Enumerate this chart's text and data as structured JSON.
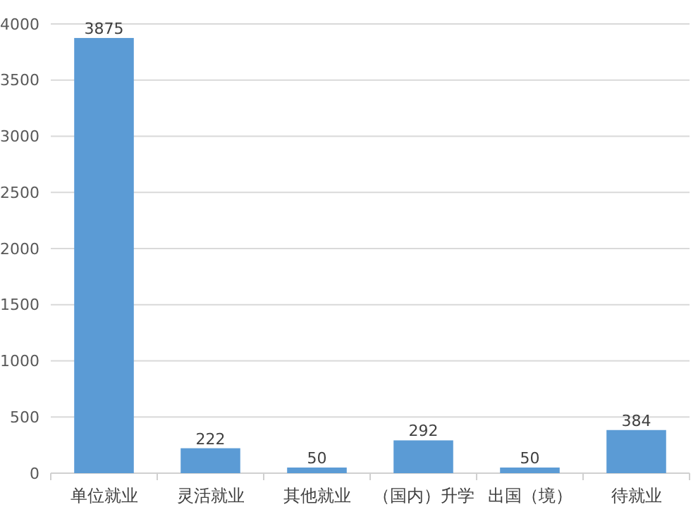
{
  "chart_data": {
    "type": "bar",
    "categories": [
      "单位就业",
      "灵活就业",
      "其他就业",
      "（国内）升学",
      "出国（境）",
      "待就业"
    ],
    "values": [
      3875,
      222,
      50,
      292,
      50,
      384
    ],
    "color": "#5b9bd5",
    "ylim": [
      0,
      4000
    ],
    "yticks": [
      0,
      500,
      1000,
      1500,
      2000,
      2500,
      3000,
      3500,
      4000
    ],
    "grid": "y",
    "data_labels": true
  }
}
